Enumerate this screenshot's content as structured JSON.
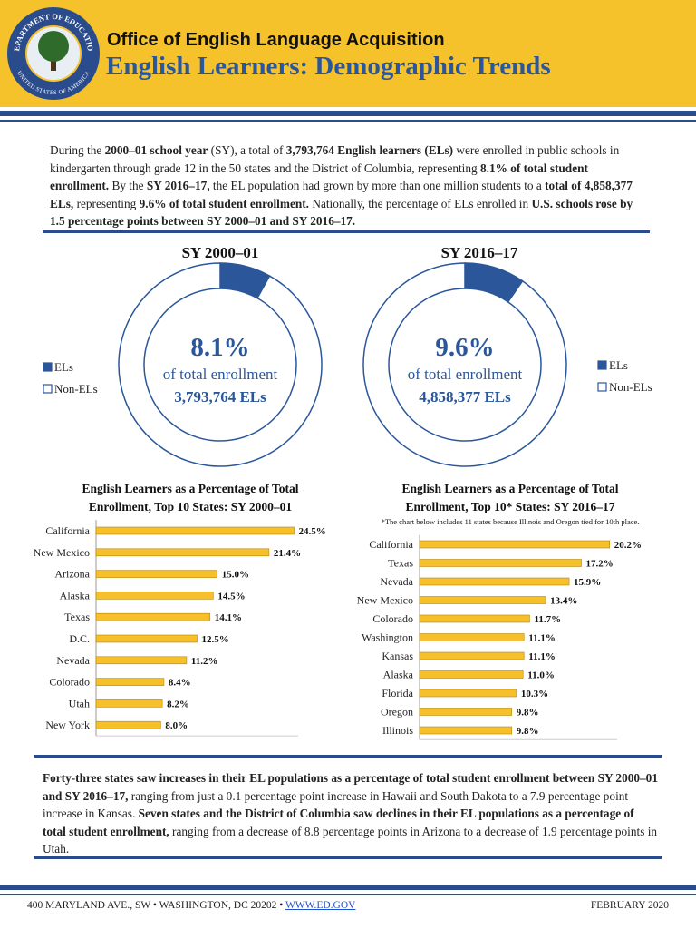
{
  "seal": {
    "top": "DEPARTMENT OF EDUCATION",
    "bottom": "UNITED STATES OF AMERICA"
  },
  "header": {
    "office": "Office of English Language Acquisition",
    "title": "English Learners: Demographic Trends"
  },
  "intro": [
    {
      "text": "During the ",
      "bold": false
    },
    {
      "text": "2000–01 school year",
      "bold": true
    },
    {
      "text": " (SY), a total of ",
      "bold": false
    },
    {
      "text": "3,793,764 English learners (ELs)",
      "bold": true
    },
    {
      "text": " were enrolled in public schools in kindergarten through grade 12 in the 50 states and the District of Columbia, representing ",
      "bold": false
    },
    {
      "text": "8.1% of total student enrollment.",
      "bold": true
    },
    {
      "text": " By the ",
      "bold": false
    },
    {
      "text": "SY 2016–17,",
      "bold": true
    },
    {
      "text": " the EL population had grown by more than one million students to a ",
      "bold": false
    },
    {
      "text": "total of 4,858,377 ELs,",
      "bold": true
    },
    {
      "text": " representing ",
      "bold": false
    },
    {
      "text": "9.6% of total student enrollment.",
      "bold": true
    },
    {
      "text": " Nationally, the percentage of ELs enrolled in ",
      "bold": false
    },
    {
      "text": "U.S. schools rose by 1.5 percentage points between SY 2000–01 and SY 2016–17.",
      "bold": true
    }
  ],
  "chart_data": [
    {
      "type": "donut",
      "title": "SY 2000–01",
      "categories": [
        "ELs",
        "Non-ELs"
      ],
      "values": [
        8.1,
        91.9
      ],
      "value_labels": [
        "8.1%",
        null
      ],
      "colors": [
        "#2b579a",
        "#ffffff"
      ],
      "center_text": "of total enrollment",
      "count_label": "3,793,764 ELs",
      "legend": "left"
    },
    {
      "type": "donut",
      "title": "SY 2016–17",
      "categories": [
        "ELs",
        "Non-ELs"
      ],
      "values": [
        9.6,
        90.4
      ],
      "value_labels": [
        "9.6%",
        null
      ],
      "colors": [
        "#2b579a",
        "#ffffff"
      ],
      "center_text": "of total enrollment",
      "count_label": "4,858,377 ELs",
      "legend": "right"
    },
    {
      "type": "hbar",
      "title": [
        "English Learners as a Percentage of Total",
        "Enrollment, Top 10 States: SY 2000–01"
      ],
      "categories": [
        "California",
        "New Mexico",
        "Arizona",
        "Alaska",
        "Texas",
        "D.C.",
        "Nevada",
        "Colorado",
        "Utah",
        "New York"
      ],
      "values": [
        24.5,
        21.4,
        15.0,
        14.5,
        14.1,
        12.5,
        11.2,
        8.4,
        8.2,
        8.0
      ],
      "value_labels": [
        "24.5%",
        "21.4%",
        "15.0%",
        "14.5%",
        "14.1%",
        "12.5%",
        "11.2%",
        "8.4%",
        "8.2%",
        "8.0%"
      ],
      "color": "#f5c02a",
      "xlim": [
        0,
        25
      ]
    },
    {
      "type": "hbar",
      "title": [
        "English Learners as a Percentage of Total",
        "Enrollment, Top 10* States: SY 2016–17"
      ],
      "note": "*The chart below includes 11 states because Illinois and Oregon tied for 10th place.",
      "categories": [
        "California",
        "Texas",
        "Nevada",
        "New Mexico",
        "Colorado",
        "Washington",
        "Kansas",
        "Alaska",
        "Florida",
        "Oregon",
        "Illinois"
      ],
      "values": [
        20.2,
        17.2,
        15.9,
        13.4,
        11.7,
        11.1,
        11.1,
        11.0,
        10.3,
        9.8,
        9.8
      ],
      "value_labels": [
        "20.2%",
        "17.2%",
        "15.9%",
        "13.4%",
        "11.7%",
        "11.1%",
        "11.1%",
        "11.0%",
        "10.3%",
        "9.8%",
        "9.8%"
      ],
      "color": "#f5c02a",
      "xlim": [
        0,
        21
      ]
    }
  ],
  "summary": [
    {
      "text": "Forty-three states saw increases in their EL populations as a percentage of total student enrollment between SY 2000–01 and SY 2016–17,",
      "bold": true
    },
    {
      "text": " ranging from just a 0.1 percentage point increase in Hawaii and South Dakota to a 7.9 percentage point increase in Kansas. ",
      "bold": false
    },
    {
      "text": "Seven states and the District of Columbia saw declines in their EL populations as a percentage of total student enrollment,",
      "bold": true
    },
    {
      "text": " ranging from a decrease of 8.8 percentage points in Arizona to a decrease of 1.9 percentage points in Utah.",
      "bold": false
    }
  ],
  "footer": {
    "address": "400 MARYLAND AVE., SW • WASHINGTON, DC 20202 • ",
    "link": "WWW.ED.GOV",
    "date": "FEBRUARY 2020"
  }
}
